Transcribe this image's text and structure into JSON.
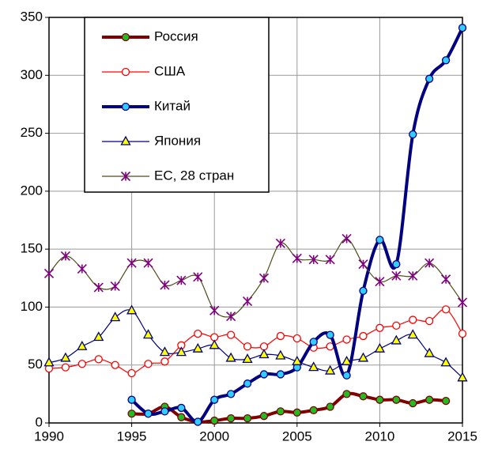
{
  "chart_data": {
    "type": "line",
    "x": [
      1990,
      1991,
      1992,
      1993,
      1994,
      1995,
      1996,
      1997,
      1998,
      1999,
      2000,
      2001,
      2002,
      2003,
      2004,
      2005,
      2006,
      2007,
      2008,
      2009,
      2010,
      2011,
      2012,
      2013,
      2014,
      2015
    ],
    "xlim": [
      1990,
      2015
    ],
    "xticks": [
      1990,
      1995,
      2000,
      2005,
      2010,
      2015
    ],
    "ylim": [
      0,
      350
    ],
    "yticks": [
      0,
      50,
      100,
      150,
      200,
      250,
      300,
      350
    ],
    "grid": true,
    "legend": "upper left",
    "smooth": true,
    "series": [
      {
        "name": "Россия",
        "color": "#800000",
        "marker": "circle",
        "marker_color": "#22bb22",
        "line_width": 4,
        "values": [
          null,
          null,
          null,
          null,
          null,
          8,
          8,
          14,
          5,
          1,
          2,
          4,
          4,
          6,
          10,
          9,
          11,
          14,
          25,
          23,
          20,
          20,
          17,
          20,
          19,
          null
        ]
      },
      {
        "name": "США",
        "color": "#ff0000",
        "marker": "circle",
        "marker_color": "#ffffff",
        "line_width": 1.2,
        "values": [
          47,
          48,
          51,
          55,
          50,
          43,
          51,
          53,
          67,
          77,
          74,
          76,
          66,
          66,
          75,
          73,
          65,
          66,
          72,
          75,
          82,
          84,
          89,
          88,
          98,
          77
        ]
      },
      {
        "name": "Китай",
        "color": "#000080",
        "marker": "circle",
        "marker_color": "#33ccff",
        "line_width": 4,
        "values": [
          null,
          null,
          null,
          null,
          null,
          20,
          8,
          10,
          13,
          1,
          20,
          25,
          34,
          42,
          42,
          48,
          70,
          76,
          41,
          114,
          158,
          137,
          249,
          297,
          313,
          341
        ]
      },
      {
        "name": "Япония",
        "color": "#000080",
        "marker": "triangle",
        "marker_color": "#ffff00",
        "line_width": 1.2,
        "values": [
          52,
          56,
          66,
          74,
          91,
          97,
          76,
          61,
          61,
          64,
          67,
          56,
          55,
          59,
          58,
          53,
          48,
          45,
          53,
          56,
          64,
          71,
          76,
          60,
          52,
          39
        ]
      },
      {
        "name": "ЕС, 28 стран",
        "color": "#4d4d1a",
        "marker": "star",
        "marker_color": "#800080",
        "line_width": 1.2,
        "values": [
          129,
          144,
          133,
          117,
          118,
          138,
          138,
          119,
          123,
          126,
          97,
          92,
          105,
          125,
          155,
          142,
          141,
          141,
          159,
          137,
          122,
          127,
          127,
          138,
          124,
          104
        ]
      }
    ]
  }
}
